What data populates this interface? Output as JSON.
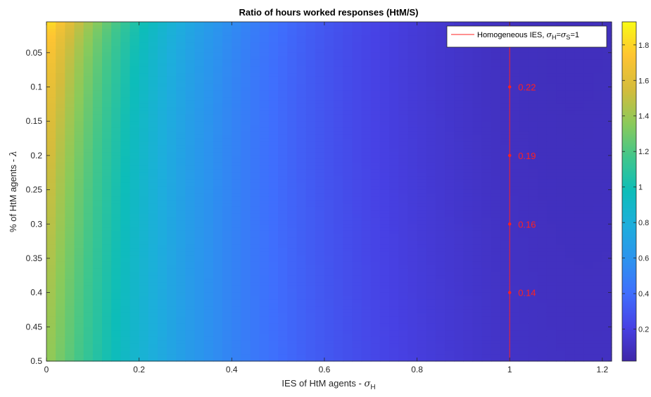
{
  "chart_data": {
    "type": "heatmap",
    "title": "Ratio of hours worked responses (HtM/S)",
    "xlabel": {
      "main": "IES of HtM agents - ",
      "symbol": "σ",
      "sub": "H"
    },
    "ylabel": {
      "main": "% of HtM agents - ",
      "symbol": "λ"
    },
    "x_range": [
      0,
      1.22
    ],
    "y_range": [
      0.5,
      0.005
    ],
    "y_reversed": true,
    "x_ticks": [
      "0",
      "0.2",
      "0.4",
      "0.6",
      "0.8",
      "1",
      "1.2"
    ],
    "x_tick_values": [
      0,
      0.2,
      0.4,
      0.6,
      0.8,
      1,
      1.2
    ],
    "y_ticks": [
      "0.05",
      "0.1",
      "0.15",
      "0.2",
      "0.25",
      "0.3",
      "0.35",
      "0.4",
      "0.45",
      "0.5"
    ],
    "y_tick_values": [
      0.05,
      0.1,
      0.15,
      0.2,
      0.25,
      0.3,
      0.35,
      0.4,
      0.45,
      0.5
    ],
    "x_grid_step": 0.02,
    "y_grid_step": 0.005,
    "colormap": "parula",
    "color_range": [
      0.02,
      1.93
    ],
    "colorbar_ticks": [
      "0.2",
      "0.4",
      "0.6",
      "0.8",
      "1",
      "1.2",
      "1.4",
      "1.6",
      "1.8"
    ],
    "colorbar_tick_values": [
      0.2,
      0.4,
      0.6,
      0.8,
      1.0,
      1.2,
      1.4,
      1.6,
      1.8
    ],
    "reference_line": {
      "x": 1,
      "color": "#ff2020",
      "legend": {
        "main": "Homogeneous IES, ",
        "s1": "σ",
        "sub1": "H",
        "eq": "=",
        "s2": "σ",
        "sub2": "S",
        "tail": "=1"
      },
      "markers": [
        {
          "y": 0.1,
          "label": "0.22"
        },
        {
          "y": 0.2,
          "label": "0.19"
        },
        {
          "y": 0.3,
          "label": "0.16"
        },
        {
          "y": 0.4,
          "label": "0.14"
        }
      ]
    },
    "legend_position": "top-right",
    "grid": false
  }
}
